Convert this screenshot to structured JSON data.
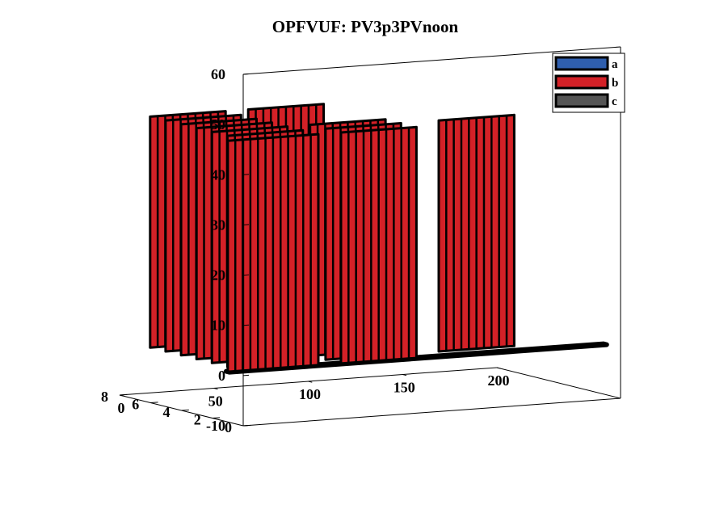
{
  "chart_data": {
    "type": "bar3",
    "title": "OPFVUF: PV3p3PVnoon",
    "xlabel": "",
    "ylabel": "",
    "zlabel": "",
    "xlim": [
      0,
      200
    ],
    "ylim": [
      0,
      8
    ],
    "zlim": [
      -10,
      60
    ],
    "xticks": [
      "0",
      "50",
      "100",
      "150",
      "200"
    ],
    "yticks": [
      "0",
      "2",
      "4",
      "6",
      "8"
    ],
    "zticks": [
      "-10",
      "0",
      "10",
      "20",
      "30",
      "40",
      "50",
      "60"
    ],
    "legend": {
      "position": "top-right",
      "entries": [
        "a",
        "b",
        "c"
      ]
    },
    "colors": {
      "a": "#2f5fae",
      "b": "#d42127",
      "c": "#555555",
      "edge": "#000000"
    },
    "series": [
      {
        "name": "a",
        "values": []
      },
      {
        "name": "b",
        "walls": [
          {
            "x_start": 0,
            "x_end": 8,
            "y": 1,
            "height": 46
          },
          {
            "x_start": 8,
            "x_end": 48,
            "y": 1,
            "height": 46
          },
          {
            "x_start": 8,
            "x_end": 48,
            "y": 2,
            "height": 46
          },
          {
            "x_start": 8,
            "x_end": 48,
            "y": 3,
            "height": 46
          },
          {
            "x_start": 8,
            "x_end": 48,
            "y": 4,
            "height": 46
          },
          {
            "x_start": 8,
            "x_end": 48,
            "y": 5,
            "height": 46
          },
          {
            "x_start": 8,
            "x_end": 48,
            "y": 6,
            "height": 46
          },
          {
            "x_start": 8,
            "x_end": 48,
            "y": 7,
            "height": 46
          },
          {
            "x_start": 60,
            "x_end": 100,
            "y": 1,
            "height": 46
          },
          {
            "x_start": 60,
            "x_end": 100,
            "y": 2,
            "height": 46
          },
          {
            "x_start": 60,
            "x_end": 100,
            "y": 3,
            "height": 46
          },
          {
            "x_start": 60,
            "x_end": 100,
            "y": 7,
            "height": 46
          },
          {
            "x_start": 120,
            "x_end": 160,
            "y": 2,
            "height": 46
          }
        ]
      },
      {
        "name": "c",
        "values": [
          0
        ]
      }
    ]
  }
}
